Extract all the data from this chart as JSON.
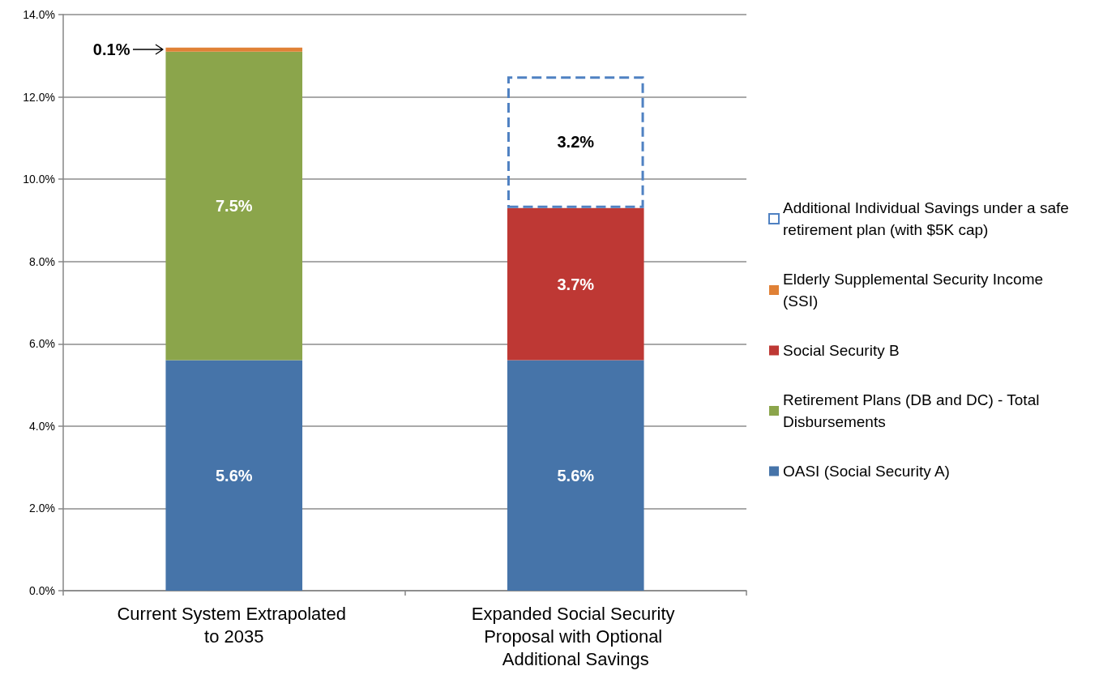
{
  "chart_data": {
    "type": "bar",
    "stacked": true,
    "categories": [
      "Current System Extrapolated to 2035",
      "Expanded Social Security Proposal with Optional Additional Savings"
    ],
    "series": [
      {
        "name": "OASI (Social Security A)",
        "color": "#4674a9",
        "values": [
          5.6,
          5.6
        ],
        "value_labels": [
          "5.6%",
          "5.6%"
        ]
      },
      {
        "name": "Retirement Plans (DB and DC) - Total Disbursements",
        "color": "#8ba54b",
        "values": [
          7.5,
          null
        ],
        "value_labels": [
          "7.5%",
          null
        ]
      },
      {
        "name": "Social Security B",
        "color": "#be3834",
        "values": [
          null,
          3.7
        ],
        "value_labels": [
          null,
          "3.7%"
        ]
      },
      {
        "name": "Elderly Supplemental Security Income (SSI)",
        "color": "#e08136",
        "values": [
          0.1,
          null
        ],
        "value_labels": [
          "0.1%",
          null
        ]
      },
      {
        "name": "Additional Individual Savings under a safe retirement plan (with $5K cap)",
        "color": "#4f81c2",
        "line_style": "dashed",
        "values": [
          null,
          3.2
        ],
        "value_labels": [
          null,
          "3.2%"
        ]
      }
    ],
    "ylim": [
      0,
      14
    ],
    "yticks": [
      {
        "value": 0,
        "label": "0.0%"
      },
      {
        "value": 2,
        "label": "2.0%"
      },
      {
        "value": 4,
        "label": "4.0%"
      },
      {
        "value": 6,
        "label": "6.0%"
      },
      {
        "value": 8,
        "label": "8.0%"
      },
      {
        "value": 10,
        "label": "10.0%"
      },
      {
        "value": 12,
        "label": "12.0%"
      },
      {
        "value": 14,
        "label": "14.0%"
      }
    ],
    "grid": "y",
    "legend": "right"
  }
}
